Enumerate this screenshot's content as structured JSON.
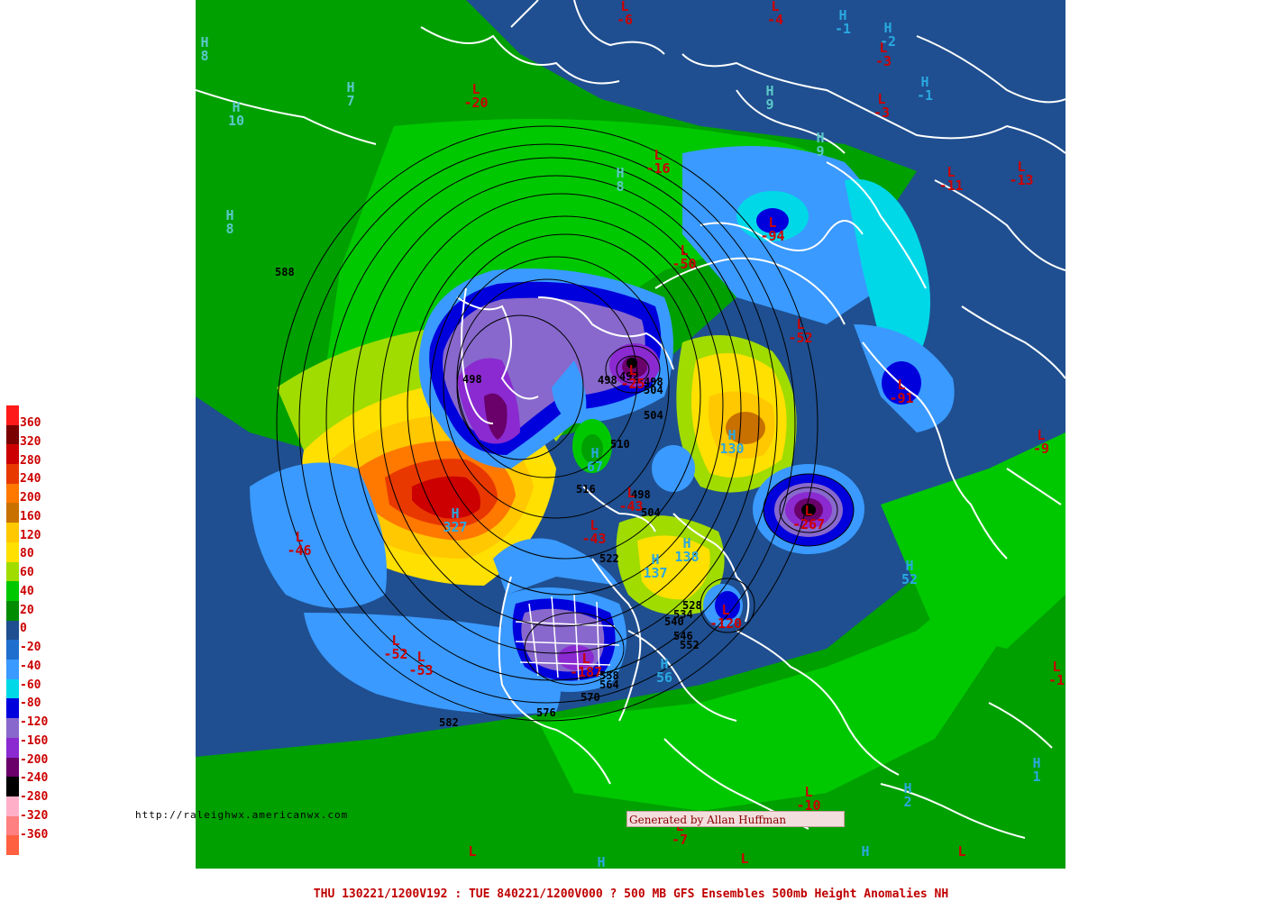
{
  "footer": {
    "caption": "THU 130221/1200V192 : TUE 840221/1200V000  ? 500 MB GFS Ensembles 500mb Height Anomalies NH"
  },
  "source_url": "http://raleighwx.americanwx.com",
  "credit": "Generated by Allan Huffman",
  "legend": {
    "labels": [
      "360",
      "320",
      "280",
      "240",
      "200",
      "160",
      "120",
      "80",
      "60",
      "40",
      "20",
      "0",
      "-20",
      "-40",
      "-60",
      "-80",
      "-120",
      "-160",
      "-200",
      "-240",
      "-280",
      "-320",
      "-360"
    ],
    "colors": [
      "#ff1a1a",
      "#7a0000",
      "#cc0000",
      "#e83800",
      "#ff7800",
      "#c87000",
      "#ffc800",
      "#ffe000",
      "#a0dc00",
      "#00c800",
      "#008c00",
      "#1f4f90",
      "#1f6fcf",
      "#3a9aff",
      "#00d8e8",
      "#0000dd",
      "#8868cc",
      "#8a2ad0",
      "#6a006a",
      "#000000",
      "#ffb0c8",
      "#ff8080",
      "#ff6040"
    ]
  },
  "markers": [
    {
      "type": "H",
      "value": "8",
      "color": "#5ac8c8"
    },
    {
      "type": "L",
      "value": "-6",
      "color": "#cc0000"
    },
    {
      "type": "L",
      "value": "-4",
      "color": "#cc0000"
    },
    {
      "type": "H",
      "value": "-1",
      "color": "#2aa8e0"
    },
    {
      "type": "H",
      "value": "-2",
      "color": "#2aa8e0"
    },
    {
      "type": "L",
      "value": "-3",
      "color": "#cc0000"
    },
    {
      "type": "H",
      "value": "-1",
      "color": "#2aa8e0"
    },
    {
      "type": "H",
      "value": "7",
      "color": "#5ac8c8"
    },
    {
      "type": "L",
      "value": "-20",
      "color": "#cc0000"
    },
    {
      "type": "H",
      "value": "9",
      "color": "#5ac8c8"
    },
    {
      "type": "L",
      "value": "-3",
      "color": "#cc0000"
    },
    {
      "type": "H",
      "value": "10",
      "color": "#5ac8c8"
    },
    {
      "type": "L",
      "value": "-16",
      "color": "#cc0000"
    },
    {
      "type": "H",
      "value": "8",
      "color": "#5ac8c8"
    },
    {
      "type": "L",
      "value": "-11",
      "color": "#cc0000"
    },
    {
      "type": "L",
      "value": "-13",
      "color": "#cc0000"
    },
    {
      "type": "H",
      "value": "8",
      "color": "#5ac8c8"
    },
    {
      "type": "H",
      "value": "9",
      "color": "#5ac8c8"
    },
    {
      "type": "L",
      "value": "-94",
      "color": "#cc0000"
    },
    {
      "type": "L",
      "value": "-50",
      "color": "#cc0000"
    },
    {
      "type": "L",
      "value": "-52",
      "color": "#cc0000"
    },
    {
      "type": "L",
      "value": "-91",
      "color": "#cc0000"
    },
    {
      "type": "L",
      "value": "-25",
      "color": "#cc0000"
    },
    {
      "type": "H",
      "value": "130",
      "color": "#2aa8e0"
    },
    {
      "type": "H",
      "value": "67",
      "color": "#2aa8e0"
    },
    {
      "type": "L",
      "value": "-9",
      "color": "#cc0000"
    },
    {
      "type": "H",
      "value": "327",
      "color": "#2aa8e0"
    },
    {
      "type": "L",
      "value": "-43",
      "color": "#cc0000"
    },
    {
      "type": "L",
      "value": "-43",
      "color": "#cc0000"
    },
    {
      "type": "L",
      "value": "-267",
      "color": "#cc0000"
    },
    {
      "type": "L",
      "value": "-46",
      "color": "#cc0000"
    },
    {
      "type": "H",
      "value": "138",
      "color": "#2aa8e0"
    },
    {
      "type": "H",
      "value": "137",
      "color": "#2aa8e0"
    },
    {
      "type": "H",
      "value": "52",
      "color": "#2aa8e0"
    },
    {
      "type": "L",
      "value": "-120",
      "color": "#cc0000"
    },
    {
      "type": "L",
      "value": "-52",
      "color": "#cc0000"
    },
    {
      "type": "L",
      "value": "-53",
      "color": "#cc0000"
    },
    {
      "type": "L",
      "value": "-187",
      "color": "#cc0000"
    },
    {
      "type": "H",
      "value": "56",
      "color": "#2aa8e0"
    },
    {
      "type": "L",
      "value": "-1",
      "color": "#cc0000"
    },
    {
      "type": "H",
      "value": "1",
      "color": "#2aa8e0"
    },
    {
      "type": "L",
      "value": "-10",
      "color": "#cc0000"
    },
    {
      "type": "H",
      "value": "2",
      "color": "#2aa8e0"
    },
    {
      "type": "L",
      "value": "-7",
      "color": "#cc0000"
    },
    {
      "type": "L",
      "value": "",
      "color": "#cc0000"
    },
    {
      "type": "H",
      "value": "",
      "color": "#2aa8e0"
    },
    {
      "type": "L",
      "value": "",
      "color": "#cc0000"
    },
    {
      "type": "H",
      "value": "",
      "color": "#2aa8e0"
    },
    {
      "type": "L",
      "value": "",
      "color": "#cc0000"
    }
  ],
  "contour_labels": [
    "588",
    "498",
    "498",
    "492",
    "498",
    "504",
    "504",
    "510",
    "516",
    "498",
    "504",
    "522",
    "528",
    "534",
    "540",
    "546",
    "552",
    "558",
    "564",
    "570",
    "576",
    "582"
  ]
}
